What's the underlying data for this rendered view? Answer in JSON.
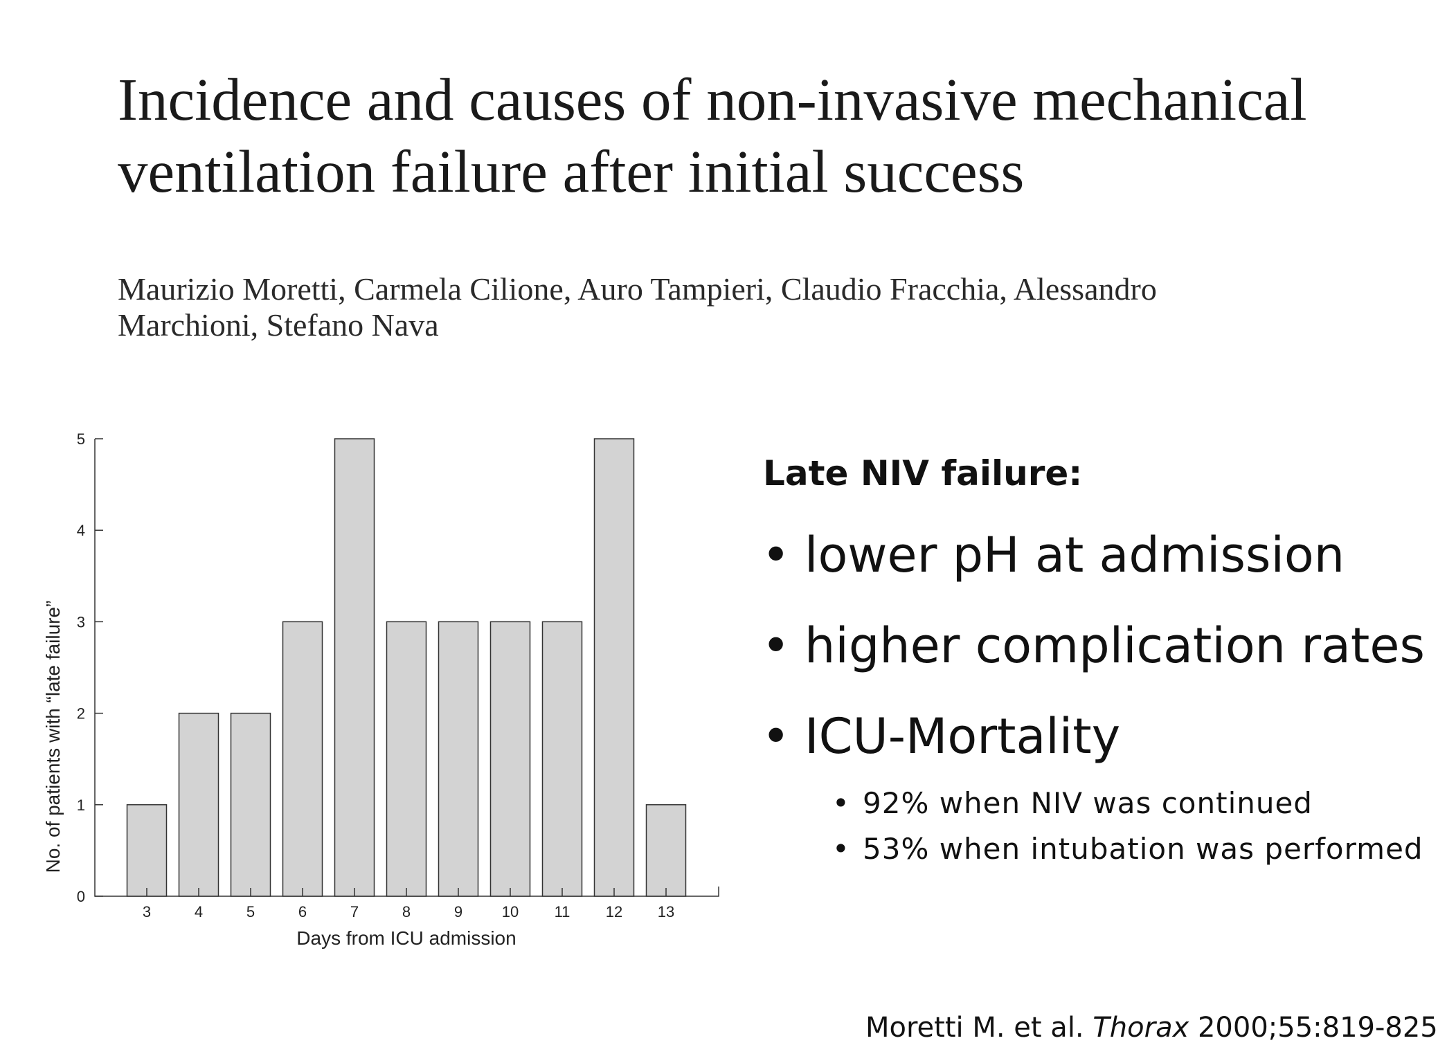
{
  "slide": {
    "title_line1": "Incidence and causes of non-invasive mechanical",
    "title_line2": "ventilation failure after initial success",
    "authors_line1": "Maurizio Moretti, Carmela Cilione, Auro Tampieri, Claudio Fracchia, Alessandro",
    "authors_line2": "Marchioni, Stefano Nava",
    "heading": "Late NIV failure:",
    "bullets": [
      "lower pH at admission",
      "higher complication rates",
      "ICU-Mortality"
    ],
    "sub_bullets": [
      "92% when NIV was continued",
      "53% when intubation was performed"
    ],
    "citation_authors": "Moretti M. et al. ",
    "citation_journal": "Thorax",
    "citation_ref": " 2000;55:819-825"
  },
  "chart_data": {
    "type": "bar",
    "categories": [
      "3",
      "4",
      "5",
      "6",
      "7",
      "8",
      "9",
      "10",
      "11",
      "12",
      "13"
    ],
    "values": [
      1,
      2,
      2,
      3,
      5,
      3,
      3,
      3,
      3,
      5,
      1
    ],
    "title": "",
    "xlabel": "Days from ICU admission",
    "ylabel": "No. of patients with “late failure”",
    "ylim": [
      0,
      5
    ],
    "yticks": [
      0,
      1,
      2,
      3,
      4,
      5
    ],
    "grid": false,
    "colors": {
      "bar_fill": "#d3d3d3",
      "bar_stroke": "#333333"
    }
  }
}
